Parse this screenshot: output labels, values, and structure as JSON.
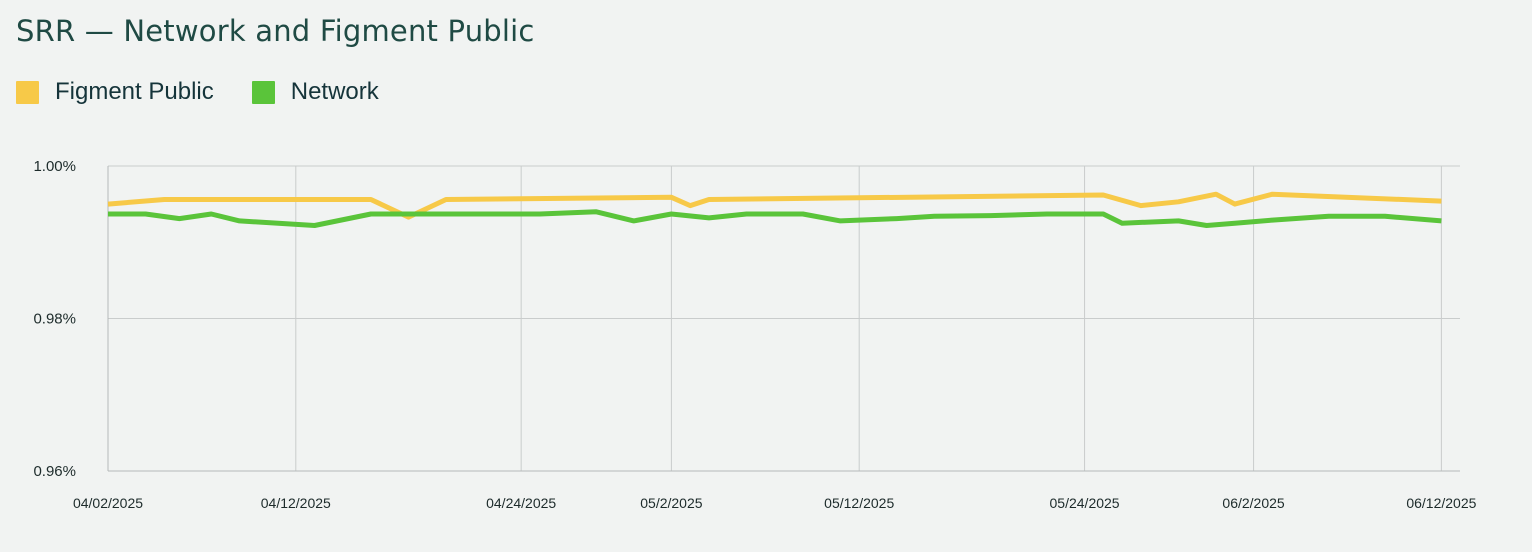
{
  "chart_data": {
    "type": "line",
    "title": "SRR — Network and Figment Public",
    "xlabel": "",
    "ylabel": "",
    "ylim": [
      0.96,
      1.0
    ],
    "y_ticks": [
      "1.00%",
      "0.98%",
      "0.96%"
    ],
    "y_tick_values": [
      1.0,
      0.98,
      0.96
    ],
    "x_tick_labels": [
      "04/02/2025",
      "04/12/2025",
      "04/24/2025",
      "05/2/2025",
      "05/12/2025",
      "05/24/2025",
      "06/2/2025",
      "06/12/2025"
    ],
    "x_tick_days": [
      0,
      10,
      22,
      30,
      40,
      52,
      61,
      71
    ],
    "grid": true,
    "legend_position": "top-left",
    "series": [
      {
        "name": "Figment Public",
        "color": "#f7c948",
        "x_days": [
          0,
          3,
          14,
          16,
          18,
          30,
          31,
          32,
          53,
          55,
          57,
          59,
          60,
          62,
          71
        ],
        "values": [
          0.995,
          0.9956,
          0.9956,
          0.9933,
          0.9956,
          0.9959,
          0.9948,
          0.9956,
          0.9962,
          0.9948,
          0.9953,
          0.9963,
          0.995,
          0.9963,
          0.9954
        ]
      },
      {
        "name": "Network",
        "color": "#5ac43a",
        "x_days": [
          0,
          2,
          3.8,
          5.5,
          7,
          11,
          14,
          16,
          23,
          26,
          28,
          30,
          32,
          34,
          37,
          39,
          42,
          44,
          47,
          50,
          53,
          54,
          57,
          58.5,
          60,
          62,
          65,
          68,
          71
        ],
        "values": [
          0.9937,
          0.9937,
          0.9931,
          0.9937,
          0.9928,
          0.9922,
          0.9937,
          0.9937,
          0.9937,
          0.994,
          0.9928,
          0.9937,
          0.9932,
          0.9937,
          0.9937,
          0.9928,
          0.9931,
          0.9934,
          0.9935,
          0.9937,
          0.9937,
          0.9925,
          0.9928,
          0.9922,
          0.9925,
          0.9929,
          0.9934,
          0.9934,
          0.9928
        ]
      }
    ]
  }
}
